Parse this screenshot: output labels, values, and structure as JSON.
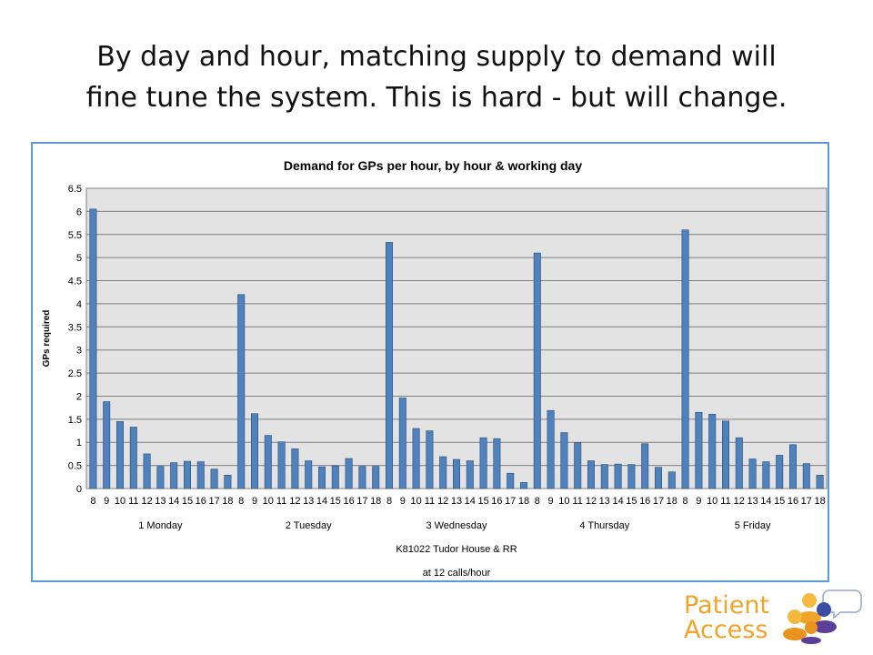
{
  "slide": {
    "title_line1": "By day and hour, matching supply to demand will",
    "title_line2": "fine tune the system.  This is hard - but will change."
  },
  "logo": {
    "line1": "Patient",
    "line2": "Access",
    "color": "#f0a52a",
    "icon": "people-speech-bubbles-icon"
  },
  "chart_data": {
    "type": "bar",
    "title": "Demand for GPs per hour, by hour & working day",
    "ylabel": "GPs required",
    "xlabel_lines": [
      "K81022 Tudor House & RR",
      "at  12 calls/hour"
    ],
    "ylim": [
      0,
      6.5
    ],
    "yticks": [
      "0",
      "0.5",
      "1",
      "1.5",
      "2",
      "2.5",
      "3",
      "3.5",
      "4",
      "4.5",
      "5",
      "5.5",
      "6",
      "6.5"
    ],
    "grid": true,
    "bar_color": "#4f81bd",
    "hours": [
      "8",
      "9",
      "10",
      "11",
      "12",
      "13",
      "14",
      "15",
      "16",
      "17",
      "18"
    ],
    "days": [
      {
        "name": "1 Monday",
        "values": [
          6.05,
          1.88,
          1.45,
          1.33,
          0.75,
          0.48,
          0.56,
          0.59,
          0.58,
          0.42,
          0.29
        ]
      },
      {
        "name": "2 Tuesday",
        "values": [
          4.2,
          1.62,
          1.15,
          1.01,
          0.86,
          0.6,
          0.47,
          0.49,
          0.65,
          0.48,
          0.48
        ]
      },
      {
        "name": "3 Wednesday",
        "values": [
          5.33,
          1.96,
          1.3,
          1.25,
          0.69,
          0.63,
          0.6,
          1.1,
          1.08,
          0.33,
          0.13
        ]
      },
      {
        "name": "4 Thursday",
        "values": [
          5.1,
          1.69,
          1.21,
          0.99,
          0.6,
          0.52,
          0.53,
          0.52,
          0.97,
          0.46,
          0.36
        ]
      },
      {
        "name": "5 Friday",
        "values": [
          5.6,
          1.65,
          1.61,
          1.46,
          1.1,
          0.64,
          0.58,
          0.72,
          0.95,
          0.54,
          0.29
        ]
      }
    ]
  }
}
